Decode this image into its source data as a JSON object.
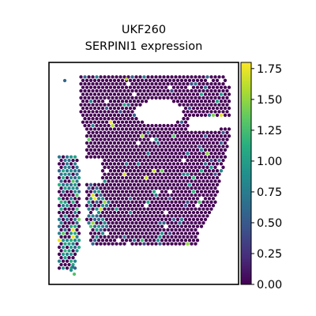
{
  "chart_data": {
    "type": "scatter",
    "title_lines": [
      "UKF260",
      "SERPINI1 expression"
    ],
    "xlabel": "",
    "ylabel": "",
    "grid": false,
    "axes_ticks_shown": false,
    "colormap": "viridis",
    "colorbar": {
      "vmin": 0.0,
      "vmax": 1.8,
      "ticks": [
        0.0,
        0.25,
        0.5,
        0.75,
        1.0,
        1.25,
        1.5,
        1.75
      ],
      "tick_labels": [
        "0.00",
        "0.25",
        "0.50",
        "0.75",
        "1.00",
        "1.25",
        "1.50",
        "1.75"
      ]
    },
    "spot_summary": {
      "background_value": 0.0,
      "elevated_regions": [
        {
          "region": "left isolated strip",
          "typical_values": [
            0.6,
            1.1
          ],
          "max_value": 1.8
        },
        {
          "region": "inner-left band",
          "typical_values": [
            0.6,
            1.0
          ],
          "max_value": 1.8
        },
        {
          "region": "main tissue body",
          "typical_values": [
            0.5,
            0.9
          ],
          "max_value": 1.8
        }
      ]
    }
  },
  "colors": {
    "background": "#ffffff",
    "axes_frame": "#000000",
    "zero_color": "#440154"
  }
}
